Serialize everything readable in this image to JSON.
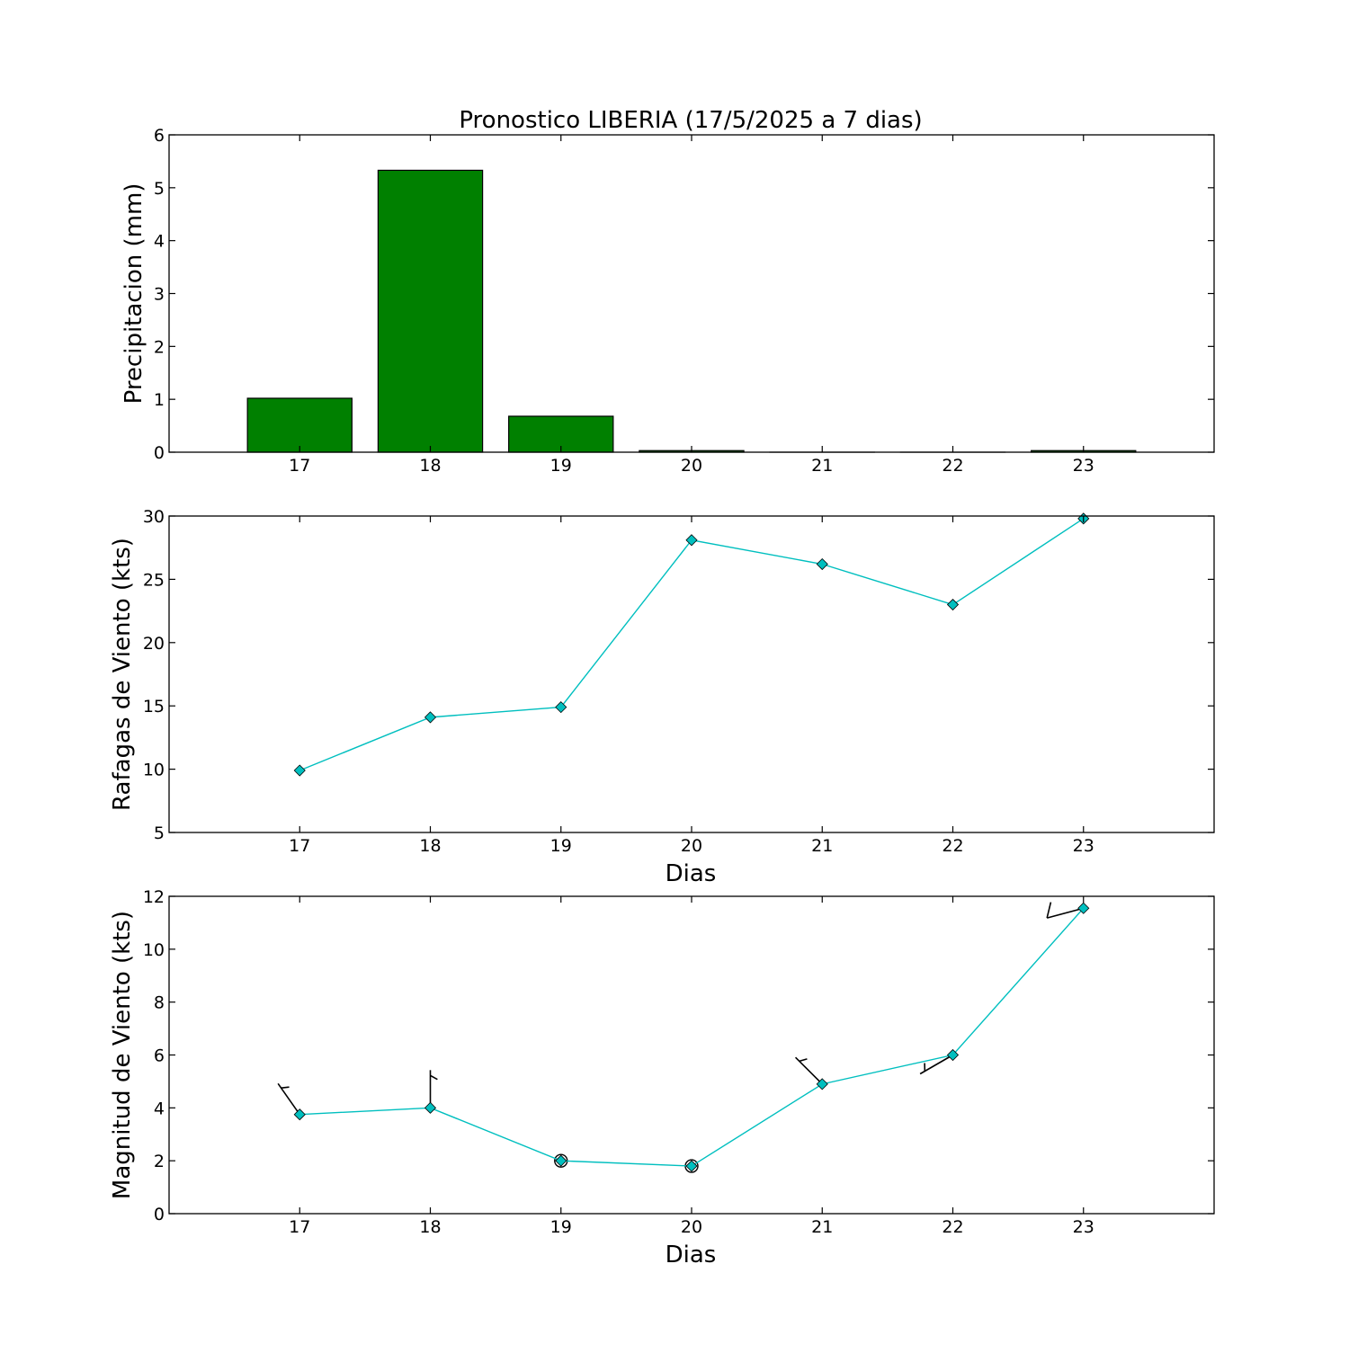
{
  "chart_data": [
    {
      "type": "bar",
      "title": "Pronostico  LIBERIA (17/5/2025 a 7 dias)",
      "xlabel": "",
      "ylabel": "Precipitacion (mm)",
      "categories": [
        "17",
        "18",
        "19",
        "20",
        "21",
        "22",
        "23"
      ],
      "values": [
        1.02,
        5.33,
        0.68,
        0.03,
        0.0,
        0.0,
        0.03
      ],
      "ylim": [
        0,
        6
      ],
      "yticks": [
        "0",
        "1",
        "2",
        "3",
        "4",
        "5",
        "6"
      ],
      "bar_color": "#008000",
      "grid": false
    },
    {
      "type": "line",
      "title": "",
      "xlabel": "Dias",
      "ylabel": "Rafagas de Viento (kts)",
      "categories": [
        "17",
        "18",
        "19",
        "20",
        "21",
        "22",
        "23"
      ],
      "values": [
        9.9,
        14.1,
        14.9,
        28.1,
        26.2,
        23.0,
        29.8
      ],
      "ylim": [
        5,
        30
      ],
      "yticks": [
        "5",
        "10",
        "15",
        "20",
        "25",
        "30"
      ],
      "line_color": "#00bfbf",
      "marker": "diamond",
      "grid": false
    },
    {
      "type": "line",
      "title": "",
      "xlabel": "Dias",
      "ylabel": "Magnitud de Viento (kts)",
      "categories": [
        "17",
        "18",
        "19",
        "20",
        "21",
        "22",
        "23"
      ],
      "values": [
        3.75,
        4.0,
        2.0,
        1.8,
        4.9,
        6.0,
        11.55
      ],
      "ylim": [
        0,
        12
      ],
      "yticks": [
        "0",
        "2",
        "4",
        "6",
        "8",
        "10",
        "12"
      ],
      "line_color": "#00bfbf",
      "marker": "diamond",
      "wind_barbs": true,
      "wind_direction_deg": [
        325,
        0,
        null,
        null,
        315,
        240,
        255
      ],
      "grid": false
    }
  ]
}
